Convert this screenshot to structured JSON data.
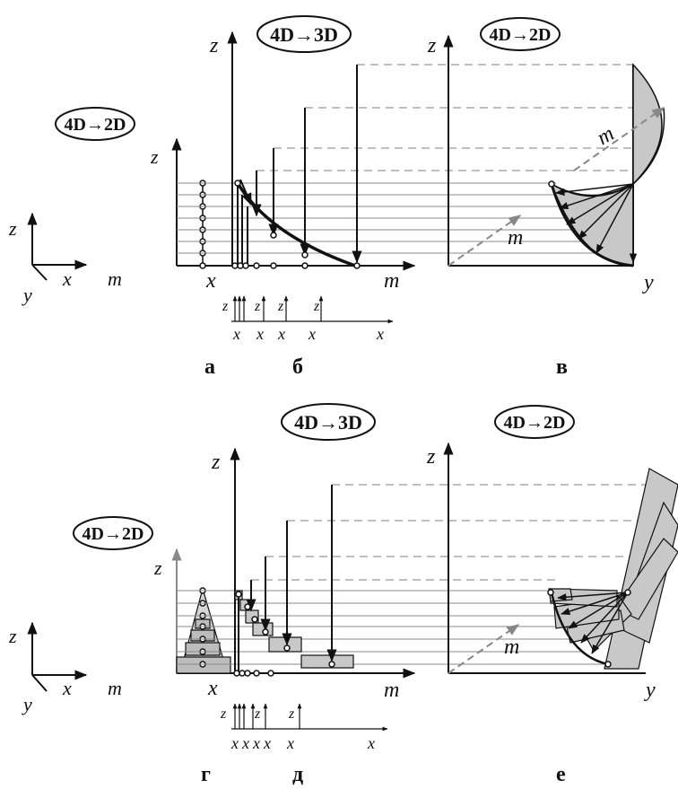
{
  "badges": {
    "a": "4D→2D",
    "b": "4D→3D",
    "c": "4D→2D",
    "d": "4D→2D",
    "e": "4D→3D",
    "f": "4D→2D"
  },
  "axes": {
    "z": "z",
    "x": "x",
    "y": "y",
    "m": "m"
  },
  "panels": {
    "a": "а",
    "b": "б",
    "c": "в",
    "d": "г",
    "e": "д",
    "f": "е"
  },
  "colors": {
    "ink": "#111111",
    "fill": "#c8c8c8",
    "dash": "#999999",
    "grid": "#777777"
  }
}
